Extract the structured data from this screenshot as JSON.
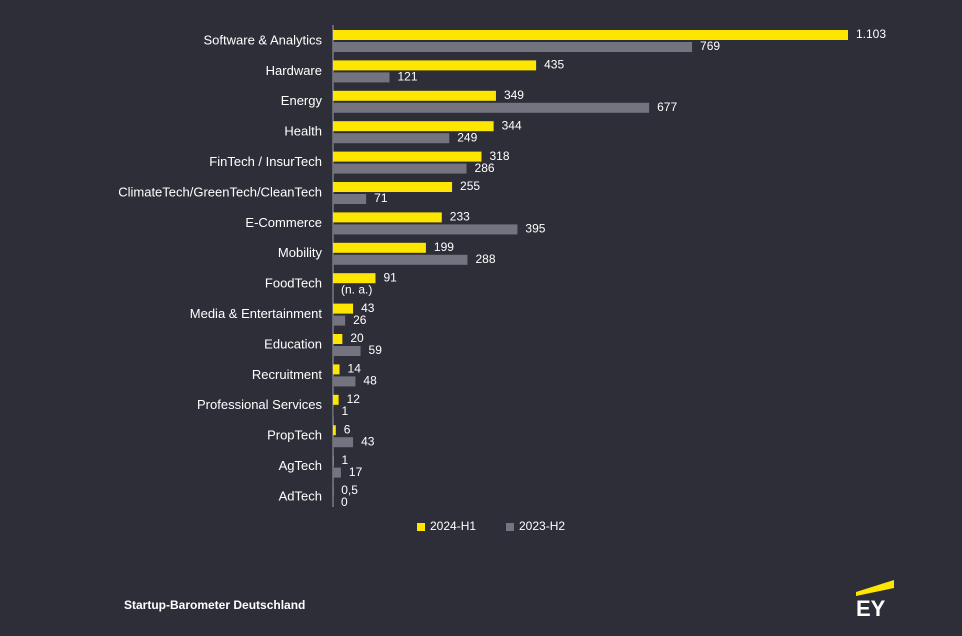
{
  "chart_data": {
    "type": "hbar",
    "categories": [
      "Software & Analytics",
      "Hardware",
      "Energy",
      "Health",
      "FinTech / InsurTech",
      "ClimateTech/GreenTech/CleanTech",
      "E-Commerce",
      "Mobility",
      "FoodTech",
      "Media & Entertainment",
      "Education",
      "Recruitment",
      "Professional Services",
      "PropTech",
      "AgTech",
      "AdTech"
    ],
    "series": [
      {
        "name": "2024-H1",
        "color": "#ffe600",
        "values": [
          1103,
          435,
          349,
          344,
          318,
          255,
          233,
          199,
          91,
          43,
          20,
          14,
          12,
          6,
          1,
          0.5
        ],
        "value_labels": [
          "1.103",
          null,
          null,
          null,
          null,
          null,
          null,
          null,
          null,
          null,
          null,
          null,
          null,
          null,
          null,
          "0,5"
        ]
      },
      {
        "name": "2023-H2",
        "color": "#747480",
        "values": [
          769,
          121,
          677,
          249,
          286,
          71,
          395,
          288,
          null,
          26,
          59,
          48,
          1,
          43,
          17,
          0
        ],
        "value_labels": [
          null,
          null,
          null,
          null,
          null,
          null,
          null,
          null,
          "(n. a.)",
          null,
          null,
          null,
          null,
          null,
          null,
          null
        ]
      }
    ],
    "source": "Startup-Barometer Deutschland",
    "logo": "EY"
  }
}
